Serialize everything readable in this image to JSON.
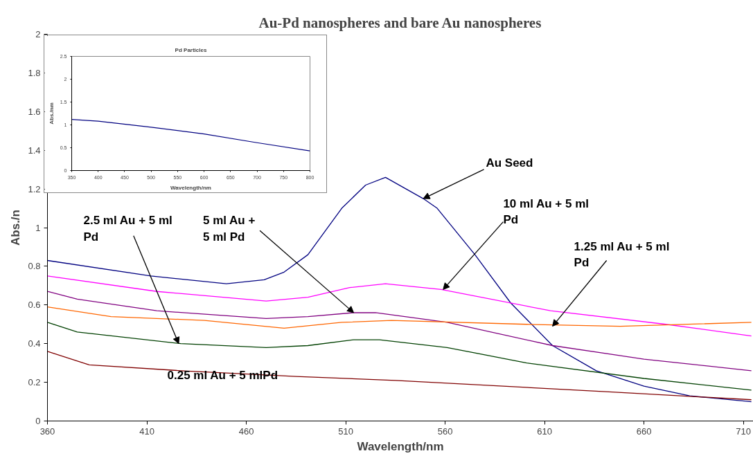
{
  "chart_data": [
    {
      "type": "line",
      "title": "Au-Pd nanospheres and bare Au nanospheres",
      "xlabel": "Wavelength/nm",
      "ylabel": "Abs./n",
      "xlim": [
        360,
        715
      ],
      "xticks": [
        360,
        410,
        460,
        510,
        560,
        610,
        660,
        710
      ],
      "ylim": [
        0,
        2
      ],
      "yticks": [
        0,
        0.2,
        0.4,
        0.6,
        0.8,
        1,
        1.2,
        1.4,
        1.6,
        1.8,
        2
      ],
      "series": [
        {
          "color": "#000080",
          "x": [
            360,
            412,
            450,
            469,
            479,
            491,
            508,
            520,
            530,
            549,
            556,
            575,
            593,
            614,
            636,
            660,
            683,
            714
          ],
          "values": [
            0.83,
            0.75,
            0.71,
            0.73,
            0.77,
            0.86,
            1.1,
            1.22,
            1.26,
            1.15,
            1.1,
            0.86,
            0.61,
            0.39,
            0.26,
            0.18,
            0.13,
            0.1
          ]
        },
        {
          "color": "#ff00ff",
          "x": [
            360,
            415,
            470,
            491,
            512,
            530,
            558,
            613,
            671,
            714
          ],
          "values": [
            0.75,
            0.67,
            0.62,
            0.64,
            0.69,
            0.71,
            0.68,
            0.57,
            0.5,
            0.44
          ]
        },
        {
          "color": "#800080",
          "x": [
            360,
            375,
            415,
            470,
            491,
            514,
            525,
            561,
            614,
            660,
            714
          ],
          "values": [
            0.67,
            0.63,
            0.57,
            0.53,
            0.54,
            0.56,
            0.56,
            0.51,
            0.39,
            0.32,
            0.26
          ]
        },
        {
          "color": "#ff6600",
          "x": [
            360,
            392,
            439,
            479,
            508,
            533,
            601,
            648,
            714
          ],
          "values": [
            0.59,
            0.54,
            0.52,
            0.48,
            0.51,
            0.52,
            0.5,
            0.49,
            0.51
          ]
        },
        {
          "color": "#004000",
          "x": [
            360,
            375,
            427,
            470,
            491,
            514,
            527,
            561,
            601,
            660,
            714
          ],
          "values": [
            0.51,
            0.46,
            0.4,
            0.38,
            0.39,
            0.42,
            0.42,
            0.38,
            0.3,
            0.22,
            0.16
          ]
        },
        {
          "color": "#800000",
          "x": [
            360,
            381,
            427,
            485,
            535,
            644,
            714
          ],
          "values": [
            0.36,
            0.29,
            0.26,
            0.23,
            0.21,
            0.15,
            0.11
          ]
        }
      ],
      "annotations": [
        {
          "text": "Au Seed",
          "x": 549,
          "y": 1.15
        },
        {
          "text": "10 ml Au + 5 ml Pd",
          "x": 559,
          "y": 0.68
        },
        {
          "text": "1.25 ml Au + 5 ml Pd",
          "x": 614,
          "y": 0.49
        },
        {
          "text": "5 ml Au + 5 ml Pd",
          "x": 514,
          "y": 0.56
        },
        {
          "text": "2.5 ml Au + 5 ml Pd",
          "x": 426,
          "y": 0.4
        },
        "0.25 ml Au + 5 mlPd"
      ]
    },
    {
      "type": "line",
      "title": "Pd Particles",
      "xlabel": "Wavelength/nm",
      "ylabel": "Abs./nm",
      "xlim": [
        350,
        800
      ],
      "xticks": [
        350,
        400,
        450,
        500,
        550,
        600,
        650,
        700,
        750,
        800
      ],
      "ylim": [
        0,
        2.5
      ],
      "yticks": [
        0,
        0.5,
        1,
        1.5,
        2,
        2.5
      ],
      "series": [
        {
          "color": "#000080",
          "x": [
            350,
            400,
            500,
            600,
            700,
            800
          ],
          "values": [
            1.12,
            1.08,
            0.95,
            0.8,
            0.61,
            0.43
          ]
        }
      ]
    }
  ]
}
